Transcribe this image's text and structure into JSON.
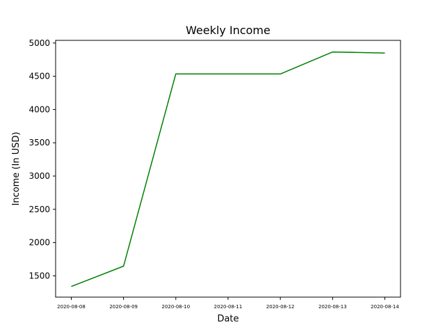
{
  "chart_data": {
    "type": "line",
    "title": "Weekly Income",
    "xlabel": "Date",
    "ylabel": "Income (In USD)",
    "x": [
      "2020-08-08",
      "2020-08-09",
      "2020-08-10",
      "2020-08-11",
      "2020-08-12",
      "2020-08-13",
      "2020-08-14"
    ],
    "series": [
      {
        "values": [
          1340,
          1645,
          4535,
          null,
          4535,
          4865,
          4850
        ],
        "color": "#008000"
      }
    ],
    "yticks": [
      1500,
      2000,
      2500,
      3000,
      3500,
      4000,
      4500,
      5000
    ],
    "ylim": [
      1180,
      5040
    ],
    "grid": false,
    "legend": "none"
  }
}
